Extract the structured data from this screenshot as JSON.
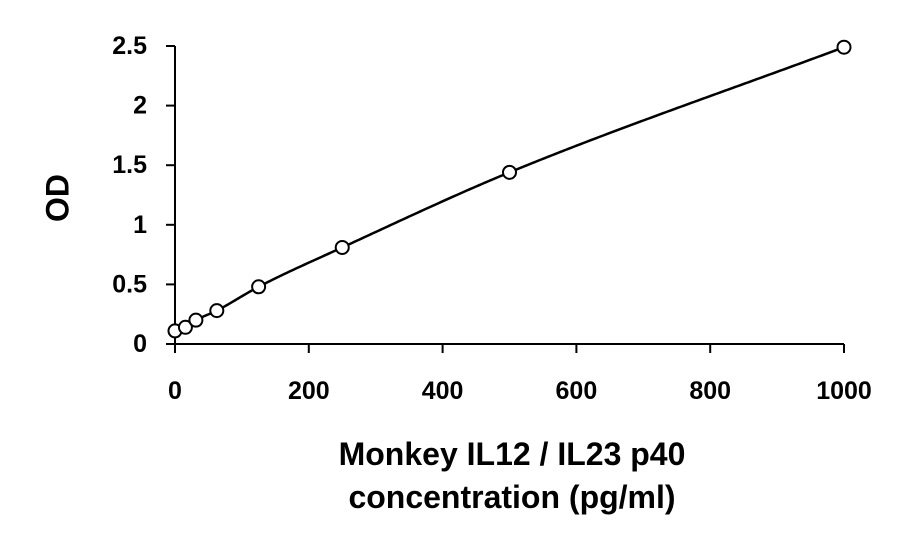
{
  "chart_data": {
    "type": "scatter",
    "title": "",
    "xlabel_lines": [
      "Monkey IL12 / IL23 p40",
      "concentration (pg/ml)"
    ],
    "ylabel": "OD",
    "xlim": [
      0,
      1000
    ],
    "ylim": [
      0,
      2.5
    ],
    "xticks": [
      0,
      200,
      400,
      600,
      800,
      1000
    ],
    "xtick_labels": [
      "0",
      "200",
      "400",
      "600",
      "800",
      "1000"
    ],
    "yticks": [
      0,
      0.5,
      1,
      1.5,
      2,
      2.5
    ],
    "ytick_labels": [
      "0",
      "0.5",
      "1",
      "1.5",
      "2",
      "2.5"
    ],
    "grid": false,
    "legend": "none",
    "series": [
      {
        "x": [
          0,
          15.6,
          31.25,
          62.5,
          125,
          250,
          500,
          1000
        ],
        "y": [
          0.11,
          0.14,
          0.2,
          0.28,
          0.48,
          0.81,
          1.44,
          2.49
        ],
        "marker": "open-circle",
        "fit_line": "smooth-curve",
        "color": "#000000"
      }
    ]
  }
}
